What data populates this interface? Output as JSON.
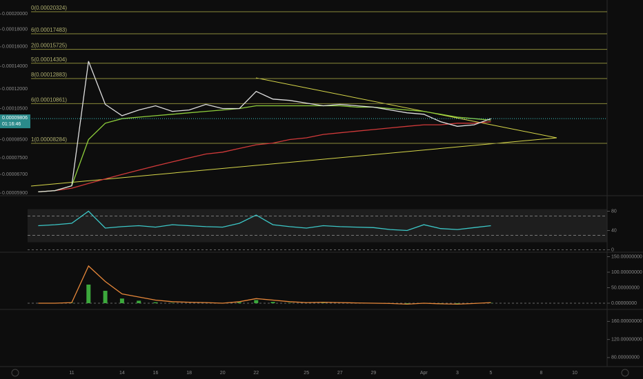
{
  "chart_data": [
    {
      "type": "line",
      "log_scale": true,
      "categories": [
        null,
        null,
        "11",
        null,
        null,
        "14",
        null,
        "16",
        null,
        "18",
        null,
        "20",
        null,
        "22",
        null,
        null,
        "25",
        null,
        "27",
        null,
        "29",
        null,
        null,
        "Apr",
        null,
        "3",
        null,
        "5",
        null,
        null,
        "8",
        null,
        "10",
        null
      ],
      "ylim": [
        5.85e-05,
        0.000215
      ],
      "yticks": [
        {
          "value": 0.0002,
          "label": "0.00020000"
        },
        {
          "value": 0.00018,
          "label": "0.00018000"
        },
        {
          "value": 0.00016,
          "label": "0.00016000"
        },
        {
          "value": 0.00014,
          "label": "0.00014000"
        },
        {
          "value": 0.00012,
          "label": "0.00012000"
        },
        {
          "value": 0.000105,
          "label": "0.00010500"
        },
        {
          "value": 8.5e-05,
          "label": "0.00008500"
        },
        {
          "value": 7.5e-05,
          "label": "0.00007500"
        },
        {
          "value": 6.7e-05,
          "label": "0.00006700"
        },
        {
          "value": 5.9e-05,
          "label": "0.00005900"
        }
      ],
      "fib_levels": [
        {
          "value": 0.00020324,
          "label": "0(0.00020324)"
        },
        {
          "value": 0.00017483,
          "label": "6(0.00017483)"
        },
        {
          "value": 0.00015725,
          "label": "2(0.00015725)"
        },
        {
          "value": 0.00014304,
          "label": "5(0.00014304)"
        },
        {
          "value": 0.00012883,
          "label": "8(0.00012883)"
        },
        {
          "value": 0.00010861,
          "label": "6(0.00010861)"
        },
        {
          "value": 8.284e-05,
          "label": "1(0.00008284)"
        }
      ],
      "last_price": {
        "value": 9.806e-05,
        "label": "0.00009806"
      },
      "countdown": "01:16:46",
      "series": [
        {
          "color": "#d23a3a",
          "values": [
            5.95e-05,
            6e-05,
            6.1e-05,
            6.3e-05,
            6.5e-05,
            6.7e-05,
            6.9e-05,
            7.1e-05,
            7.3e-05,
            7.5e-05,
            7.7e-05,
            7.8e-05,
            8e-05,
            8.2e-05,
            8.3e-05,
            8.5e-05,
            8.6e-05,
            8.8e-05,
            8.9e-05,
            9e-05,
            9.1e-05,
            9.2e-05,
            9.3e-05,
            9.4e-05,
            9.4e-05,
            9.5e-05,
            9.5e-05,
            9.6e-05,
            null,
            null,
            null,
            null,
            null,
            null
          ]
        },
        {
          "color": "#8fcf3c",
          "values": [
            5.95e-05,
            6e-05,
            6.2e-05,
            8.5e-05,
            9.5e-05,
            9.8e-05,
            9.9e-05,
            0.0001,
            0.000101,
            0.000102,
            0.000103,
            0.000104,
            0.000105,
            0.000107,
            0.000107,
            0.000107,
            0.000107,
            0.000107,
            0.000107,
            0.000106,
            0.000106,
            0.000105,
            0.000104,
            0.000103,
            0.000101,
            9.9e-05,
            9.8e-05,
            9.7e-05,
            null,
            null,
            null,
            null,
            null,
            null
          ]
        },
        {
          "color": "#e0e0e0",
          "values": [
            5.95e-05,
            6e-05,
            6.2e-05,
            0.000145,
            0.000108,
            0.0001,
            0.000104,
            0.000107,
            0.000103,
            0.000104,
            0.000108,
            0.000105,
            0.000105,
            0.000118,
            0.000112,
            0.000111,
            0.000109,
            0.000107,
            0.000108,
            0.000107,
            0.000106,
            0.000104,
            0.000102,
            0.000101,
            9.6e-05,
            9.3e-05,
            9.4e-05,
            9.8e-05,
            null,
            null,
            null,
            null,
            null,
            null
          ]
        }
      ]
    },
    {
      "type": "line",
      "ylim": [
        -5,
        105
      ],
      "yticks": [
        80,
        40,
        0
      ],
      "band_lines": [
        30,
        70
      ],
      "series": [
        {
          "color": "#3cc8c8",
          "values": [
            50,
            52,
            55,
            80,
            45,
            48,
            50,
            47,
            52,
            50,
            48,
            47,
            55,
            72,
            52,
            48,
            45,
            50,
            48,
            47,
            46,
            42,
            40,
            52,
            44,
            42,
            46,
            50,
            null,
            null,
            null,
            null,
            null,
            null
          ]
        }
      ]
    },
    {
      "type": "bar",
      "ylim": [
        -20,
        160
      ],
      "yticks": [
        {
          "value": 150,
          "label": "150.00000000"
        },
        {
          "value": 100,
          "label": "100.00000000"
        },
        {
          "value": 50,
          "label": "50.00000000"
        },
        {
          "value": 0,
          "label": "0.00000000"
        }
      ],
      "series": [
        {
          "color": "#3ca83c",
          "values": [
            0,
            0,
            1,
            60,
            40,
            15,
            8,
            3,
            1,
            0,
            0,
            0,
            3,
            10,
            4,
            1,
            0,
            1,
            0,
            0,
            0,
            -1,
            -2,
            0,
            -1,
            -2,
            0,
            1,
            null,
            null,
            null,
            null,
            null,
            null
          ]
        },
        {
          "type": "line",
          "color": "#e8883a",
          "values": [
            0,
            0,
            2,
            120,
            70,
            30,
            20,
            10,
            5,
            3,
            2,
            0,
            5,
            15,
            10,
            5,
            2,
            3,
            2,
            1,
            0,
            -1,
            -3,
            0,
            -2,
            -3,
            -1,
            2,
            null,
            null,
            null,
            null,
            null,
            null
          ]
        }
      ]
    },
    {
      "type": "line",
      "ylim": [
        60,
        185
      ],
      "yticks": [
        {
          "value": 160,
          "label": "160.00000000"
        },
        {
          "value": 120,
          "label": "120.00000000"
        },
        {
          "value": 80,
          "label": "80.00000000"
        }
      ],
      "series": []
    }
  ]
}
